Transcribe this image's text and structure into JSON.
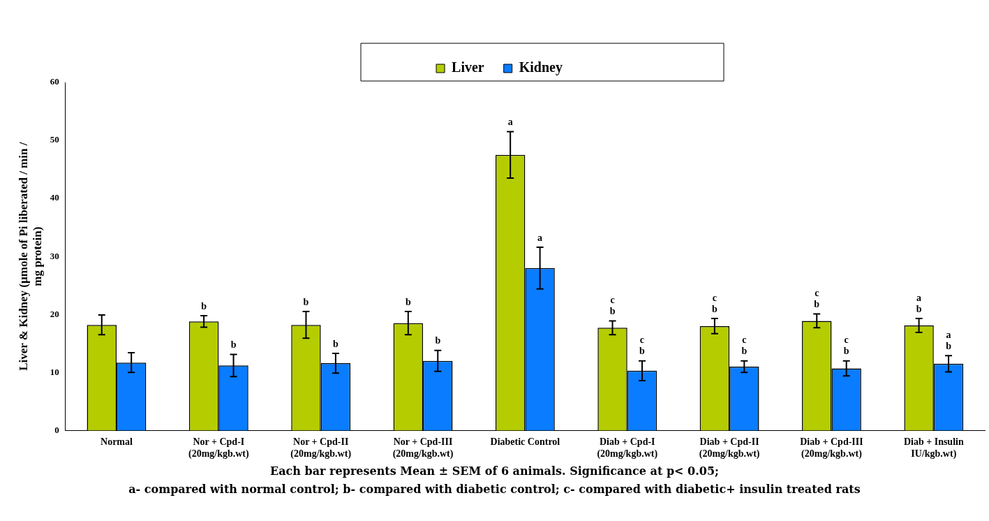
{
  "chart_data": {
    "type": "bar",
    "ylabel": "Liver & Kidney (µmole of Pi liberated / min / mg protein)",
    "categories": [
      "Normal",
      "Nor + Cpd-I\n(20mg/kgb.wt)",
      "Nor + Cpd-II\n(20mg/kgb.wt)",
      "Nor + Cpd-III\n(20mg/kgb.wt)",
      "Diabetic Control",
      "Diab + Cpd-I\n(20mg/kgb.wt)",
      "Diab + Cpd-II\n(20mg/kgb.wt)",
      "Diab + Cpd-III\n(20mg/kgb.wt)",
      "Diab + Insulin\nIU/kgb.wt)"
    ],
    "series": [
      {
        "name": "Liver",
        "color": "#b5cc00",
        "values": [
          18.2,
          18.8,
          18.2,
          18.5,
          47.5,
          17.7,
          18.0,
          18.9,
          18.1
        ],
        "errors": [
          1.7,
          1.0,
          2.3,
          2.0,
          4.0,
          1.2,
          1.3,
          1.2,
          1.2
        ],
        "value_labels": [
          null,
          "b",
          "b",
          "b",
          "a",
          "c\nb",
          "c\nb",
          "c\nb",
          "a\nb"
        ]
      },
      {
        "name": "Kidney",
        "color": "#0a7cff",
        "values": [
          11.7,
          11.2,
          11.6,
          12.0,
          28.0,
          10.3,
          11.0,
          10.7,
          11.5
        ],
        "errors": [
          1.7,
          1.9,
          1.7,
          1.8,
          3.6,
          1.7,
          1.0,
          1.3,
          1.4
        ],
        "value_labels": [
          null,
          "b",
          "b",
          "b",
          "a",
          "c\nb",
          "c\nb",
          "c\nb",
          "a\nb"
        ]
      }
    ],
    "ylim": [
      0,
      60
    ],
    "yticks": [
      0,
      10,
      20,
      30,
      40,
      50,
      60
    ],
    "grid": false,
    "legend": "top",
    "annotations": [
      "Each bar represents Mean ± SEM of 6 animals. Significance at p< 0.05;",
      "a- compared with normal control; b- compared with diabetic control; c- compared with diabetic+ insulin treated rats"
    ]
  }
}
